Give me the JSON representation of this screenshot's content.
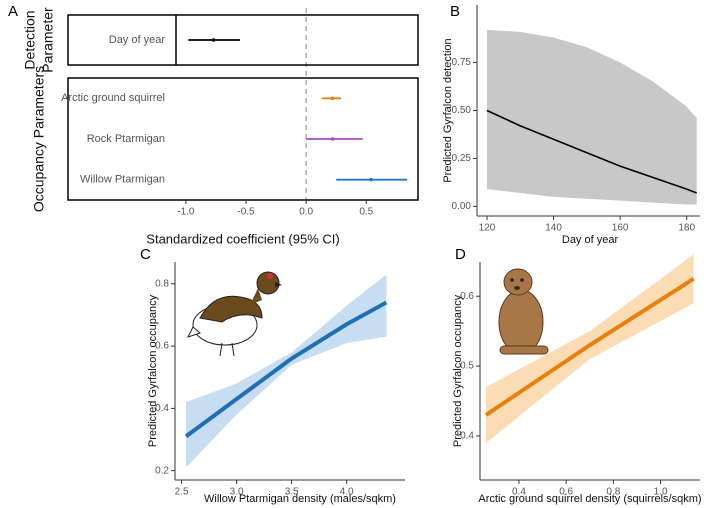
{
  "chart_data": [
    {
      "type": "forest",
      "label": "A",
      "groups": [
        {
          "name": [
            "Detection",
            "Parameter"
          ],
          "categories": [
            "Day of year"
          ],
          "estimate": [
            -0.77
          ],
          "lower": [
            -0.98
          ],
          "upper": [
            -0.55
          ],
          "colors": [
            "#000000"
          ]
        },
        {
          "name": [
            "Occupancy Parameters"
          ],
          "categories": [
            "Arctic ground squirrel",
            "Rock Ptarmigan",
            "Willow Ptarmigan"
          ],
          "estimate": [
            0.22,
            0.22,
            0.54
          ],
          "lower": [
            0.13,
            0.0,
            0.25
          ],
          "upper": [
            0.29,
            0.47,
            0.84
          ],
          "colors": [
            "#e8810c",
            "#a64dbf",
            "#1f78c8"
          ]
        }
      ],
      "reference": 0,
      "xlabel": "Standardized coefficient (95% CI)",
      "xlim": [
        -1.98,
        0.93
      ],
      "xticks": [
        {
          "value": -1.0,
          "label": "-1.0"
        },
        {
          "value": -0.5,
          "label": "-0.5"
        },
        {
          "value": 0.0,
          "label": "0.0"
        },
        {
          "value": 0.5,
          "label": "0.5"
        }
      ]
    },
    {
      "type": "ribbon",
      "label": "B",
      "xlabel": "Day of year",
      "ylabel": "Predicted Gyrfalcon detection",
      "x": [
        120,
        130,
        140,
        150,
        160,
        170,
        180,
        183
      ],
      "values": [
        0.5,
        0.42,
        0.35,
        0.28,
        0.21,
        0.15,
        0.09,
        0.07
      ],
      "upper": [
        0.92,
        0.91,
        0.88,
        0.83,
        0.75,
        0.65,
        0.52,
        0.46
      ],
      "lower": [
        0.09,
        0.07,
        0.05,
        0.04,
        0.03,
        0.02,
        0.01,
        0.01
      ],
      "color": "#000000",
      "ribbon_color": "#c8c8c8",
      "xlim": [
        117,
        184
      ],
      "ylim": [
        -0.05,
        1.05
      ],
      "xticks": [
        120,
        140,
        160,
        180
      ],
      "yticks": [
        {
          "value": 0,
          "label": "0.00"
        },
        {
          "value": 0.25,
          "label": "0.25"
        },
        {
          "value": 0.5,
          "label": "0.50"
        },
        {
          "value": 0.75,
          "label": "0.75"
        }
      ]
    },
    {
      "type": "ribbon",
      "label": "C",
      "xlabel": "Willow Ptarmigan density (males/sqkm)",
      "ylabel": "Predicted Gyrfalcon occupancy",
      "x": [
        2.54,
        3.0,
        3.5,
        4.0,
        4.36
      ],
      "values": [
        0.31,
        0.43,
        0.56,
        0.67,
        0.74
      ],
      "upper": [
        0.42,
        0.48,
        0.58,
        0.73,
        0.83
      ],
      "lower": [
        0.21,
        0.38,
        0.54,
        0.61,
        0.63
      ],
      "color": "#1f6fb5",
      "ribbon_color": "#c6ddf2",
      "xlim": [
        2.44,
        4.53
      ],
      "ylim": [
        0.17,
        0.87
      ],
      "xticks": [
        2.5,
        {
          "value": 3.0,
          "label": "3.0"
        },
        3.5,
        {
          "value": 4.0,
          "label": "4.0"
        }
      ],
      "yticks": [
        0.2,
        0.4,
        0.6,
        0.8
      ]
    },
    {
      "type": "ribbon",
      "label": "D",
      "xlabel": "Arctic ground squirrel density (squirrels/sqkm)",
      "ylabel": "Predicted Gyrfalcon occupancy",
      "x": [
        0.26,
        0.7,
        1.14
      ],
      "values": [
        0.43,
        0.53,
        0.625
      ],
      "upper": [
        0.47,
        0.55,
        0.66
      ],
      "lower": [
        0.39,
        0.51,
        0.59
      ],
      "color": "#e8810c",
      "ribbon_color": "#fbdcb5",
      "xlim": [
        0.235,
        1.167
      ],
      "ylim": [
        0.337,
        0.649
      ],
      "xticks": [
        0.4,
        0.6,
        0.8,
        {
          "value": 1.0,
          "label": "1.0"
        }
      ],
      "yticks": [
        0.4,
        0.5,
        0.6
      ]
    }
  ]
}
